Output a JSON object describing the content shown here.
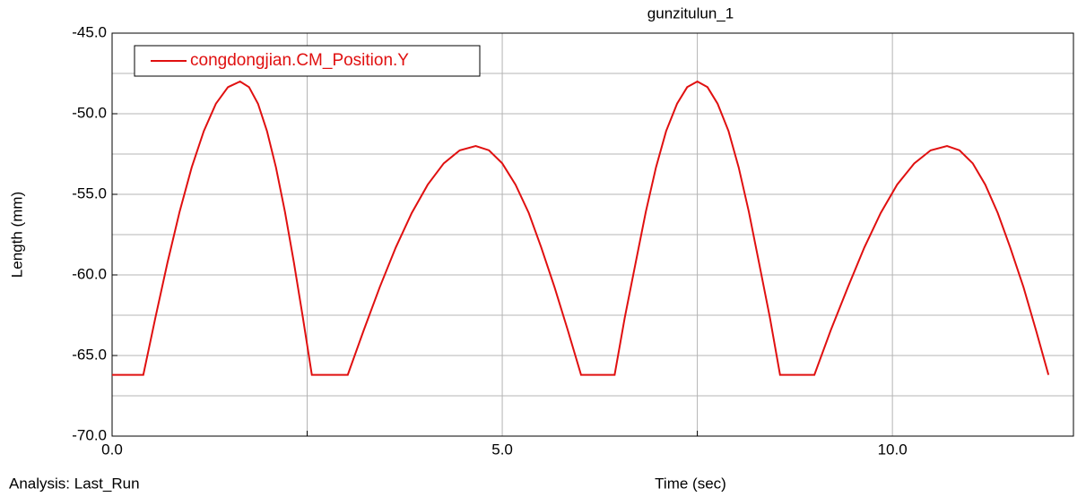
{
  "chart_data": {
    "type": "line",
    "title": "gunzitulun_1",
    "x_label": "Time (sec)",
    "y_label": "Length (mm)",
    "annotation": "Analysis:  Last_Run",
    "legend": "top-left",
    "grid": true,
    "xlim": [
      0,
      12.32
    ],
    "ylim": [
      -70,
      -45
    ],
    "xticks": [
      {
        "value": 0,
        "label": "0.0"
      },
      {
        "value": 5,
        "label": "5.0"
      },
      {
        "value": 10,
        "label": "10.0"
      }
    ],
    "xminor": [
      2.5,
      7.5
    ],
    "yticks": [
      {
        "value": -70,
        "label": "-70.0"
      },
      {
        "value": -65,
        "label": "-65.0"
      },
      {
        "value": -60,
        "label": "-60.0"
      },
      {
        "value": -55,
        "label": "-55.0"
      },
      {
        "value": -50,
        "label": "-50.0"
      },
      {
        "value": -45,
        "label": "-45.0"
      }
    ],
    "yminor": [
      -67.5,
      -62.5,
      -57.5,
      -52.5,
      -47.5
    ],
    "x": [
      0,
      0.4,
      0.555,
      0.71,
      0.865,
      1.02,
      1.175,
      1.33,
      1.485,
      1.64,
      1.755,
      1.87,
      1.985,
      2.1,
      2.215,
      2.33,
      2.445,
      2.56,
      3.02,
      3.225,
      3.43,
      3.635,
      3.84,
      4.045,
      4.25,
      4.455,
      4.66,
      4.83,
      5.0,
      5.17,
      5.34,
      5.5,
      5.67,
      5.84,
      6.01,
      6.44,
      6.57,
      6.71,
      6.84,
      6.97,
      7.1,
      7.24,
      7.37,
      7.5,
      7.63,
      7.76,
      7.9,
      8.03,
      8.16,
      8.29,
      8.43,
      8.56,
      9.0,
      9.21,
      9.43,
      9.64,
      9.85,
      10.06,
      10.28,
      10.49,
      10.7,
      10.86,
      11.03,
      11.19,
      11.35,
      11.51,
      11.68,
      11.84,
      12.0
    ],
    "series": [
      {
        "name": "congdongjian.CM_Position.Y",
        "color": "#e01010",
        "values": [
          -66.2,
          -66.2,
          -62.65,
          -59.23,
          -56.08,
          -53.33,
          -51.08,
          -49.38,
          -48.35,
          -48.0,
          -48.35,
          -49.38,
          -51.08,
          -53.33,
          -56.08,
          -59.23,
          -62.65,
          -66.2,
          -66.2,
          -63.43,
          -60.76,
          -58.3,
          -56.16,
          -54.4,
          -53.08,
          -52.27,
          -52.0,
          -52.27,
          -53.08,
          -54.4,
          -56.16,
          -58.3,
          -60.76,
          -63.43,
          -66.2,
          -66.2,
          -62.65,
          -59.23,
          -56.08,
          -53.33,
          -51.08,
          -49.38,
          -48.35,
          -48.0,
          -48.35,
          -49.38,
          -51.08,
          -53.33,
          -56.08,
          -59.23,
          -62.65,
          -66.2,
          -66.2,
          -63.43,
          -60.76,
          -58.3,
          -56.16,
          -54.4,
          -53.08,
          -52.27,
          -52.0,
          -52.27,
          -53.08,
          -54.4,
          -56.16,
          -58.3,
          -60.76,
          -63.43,
          -66.2
        ]
      }
    ]
  }
}
